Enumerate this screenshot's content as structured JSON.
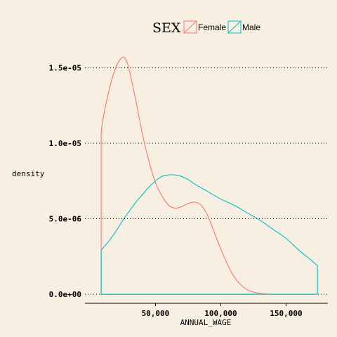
{
  "chart_data": {
    "type": "area",
    "xlabel": "ANNUAL_WAGE",
    "ylabel": "density",
    "xlim": [
      -4000,
      182000
    ],
    "ylim": [
      -6e-07,
      1.66e-05
    ],
    "x_ticks": [
      {
        "value": 50000,
        "label": "50,000"
      },
      {
        "value": 100000,
        "label": "100,000"
      },
      {
        "value": 150000,
        "label": "150,000"
      }
    ],
    "y_ticks": [
      {
        "value": 0,
        "label": "0.0e+00"
      },
      {
        "value": 5e-06,
        "label": "5.0e-06"
      },
      {
        "value": 1e-05,
        "label": "1.0e-05"
      },
      {
        "value": 1.5e-05,
        "label": "1.5e-05"
      }
    ],
    "grid": "horizontal-dotted",
    "legend": {
      "title": "SEX",
      "position": "top",
      "entries": [
        {
          "name": "Female",
          "color": "#f8766d"
        },
        {
          "name": "Male",
          "color": "#00bfc4"
        }
      ]
    },
    "series": [
      {
        "name": "Female",
        "color": "#f8766d",
        "x": [
          8400,
          10000,
          15000,
          20000,
          25000,
          28000,
          30000,
          35000,
          40000,
          45000,
          50000,
          55000,
          60000,
          65000,
          70000,
          75000,
          80000,
          85000,
          90000,
          95000,
          100000,
          105000,
          110000,
          115000,
          120000,
          125000,
          130000,
          135000,
          140000,
          145000,
          150000,
          160000,
          174000
        ],
        "values": [
          1.07e-05,
          1.17e-05,
          1.37e-05,
          1.51e-05,
          1.57e-05,
          1.54e-05,
          1.48e-05,
          1.28e-05,
          1.06e-05,
          8.8e-06,
          7.4e-06,
          6.5e-06,
          5.9e-06,
          5.7e-06,
          5.8e-06,
          6e-06,
          6.1e-06,
          5.9e-06,
          5.2e-06,
          4.1e-06,
          3e-06,
          2e-06,
          1.2e-06,
          6.5e-07,
          3.2e-07,
          1.4e-07,
          5e-08,
          2e-08,
          0.0,
          0.0,
          0.0,
          0.0,
          0.0
        ]
      },
      {
        "name": "Male",
        "color": "#00bfc4",
        "x": [
          8400,
          15000,
          20000,
          25000,
          30000,
          35000,
          40000,
          45000,
          50000,
          55000,
          60000,
          65000,
          70000,
          75000,
          80000,
          90000,
          100000,
          110000,
          120000,
          130000,
          140000,
          150000,
          160000,
          170000,
          174000
        ],
        "values": [
          2.9e-06,
          3.6e-06,
          4.2e-06,
          4.9e-06,
          5.5e-06,
          6.1e-06,
          6.6e-06,
          7.1e-06,
          7.5e-06,
          7.8e-06,
          7.9e-06,
          7.9e-06,
          7.8e-06,
          7.6e-06,
          7.3e-06,
          6.8e-06,
          6.3e-06,
          5.9e-06,
          5.4e-06,
          4.9e-06,
          4.3e-06,
          3.7e-06,
          2.9e-06,
          2.2e-06,
          1.9e-06
        ]
      }
    ]
  }
}
